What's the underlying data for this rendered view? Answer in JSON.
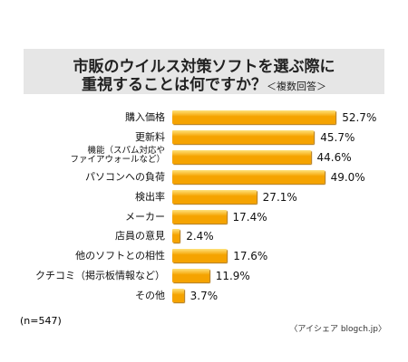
{
  "chart_data": {
    "type": "bar",
    "orientation": "horizontal",
    "title": [
      "市販のウイルス対策ソフトを選ぶ際に",
      "重視することは何ですか？"
    ],
    "subtitle": "＜複数回答＞",
    "categories": [
      "購入価格",
      "更新料",
      "機能（スパム対応や\nファイアウォールなど）",
      "パソコンへの負荷",
      "検出率",
      "メーカー",
      "店員の意見",
      "他のソフトとの相性",
      "クチコミ（掲示板情報など）",
      "その他"
    ],
    "values": [
      52.7,
      45.7,
      44.6,
      49.0,
      27.1,
      17.4,
      2.4,
      17.6,
      11.9,
      3.7
    ],
    "value_labels": [
      "52.7%",
      "45.7%",
      "44.6%",
      "49.0%",
      "27.1%",
      "17.4%",
      "2.4%",
      "17.6%",
      "11.9%",
      "3.7%"
    ],
    "color": "#f5a300",
    "note": "(n=547)",
    "source": "〈アイシェア blogch.jp〉"
  }
}
